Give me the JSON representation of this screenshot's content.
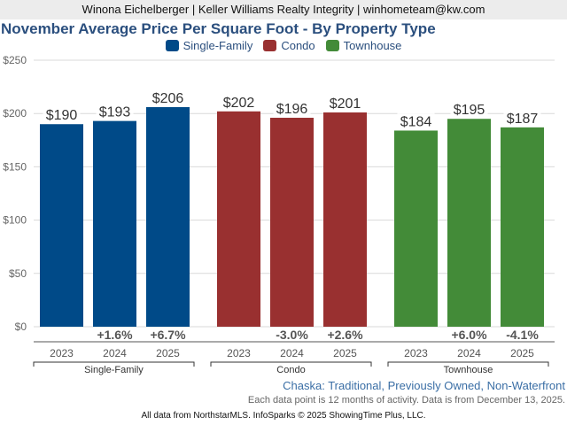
{
  "header": {
    "agent_line": "Winona Eichelberger | Keller Williams Realty Integrity | winhometeam@kw.com"
  },
  "chart_data": {
    "type": "bar",
    "title": "November Average Price Per Square Foot - By Property Type",
    "xlabel": "",
    "ylabel": "",
    "ylim": [
      0,
      250
    ],
    "yticks": [
      0,
      50,
      100,
      150,
      200,
      250
    ],
    "ytick_labels": [
      "$0",
      "$50",
      "$100",
      "$150",
      "$200",
      "$250"
    ],
    "grid": true,
    "legend_position": "top-center",
    "groups": [
      "Single-Family",
      "Condo",
      "Townhouse"
    ],
    "categories": [
      "2023",
      "2024",
      "2025"
    ],
    "series": [
      {
        "name": "Single-Family",
        "color": "#004a88",
        "values": [
          190,
          193,
          206
        ],
        "labels": [
          "$190",
          "$193",
          "$206"
        ],
        "changes": [
          "",
          "+1.6%",
          "+6.7%"
        ]
      },
      {
        "name": "Condo",
        "color": "#993030",
        "values": [
          202,
          196,
          201
        ],
        "labels": [
          "$202",
          "$196",
          "$201"
        ],
        "changes": [
          "",
          "-3.0%",
          "+2.6%"
        ]
      },
      {
        "name": "Townhouse",
        "color": "#438b38",
        "values": [
          184,
          195,
          187
        ],
        "labels": [
          "$184",
          "$195",
          "$187"
        ],
        "changes": [
          "",
          "+6.0%",
          "-4.1%"
        ]
      }
    ]
  },
  "footer": {
    "subtitle": "Chaska: Traditional, Previously Owned, Non-Waterfront",
    "note": "Each data point is 12 months of activity. Data is from December 13, 2025.",
    "source": "All data from NorthstarMLS. InfoSparks © 2025 ShowingTime Plus, LLC."
  }
}
